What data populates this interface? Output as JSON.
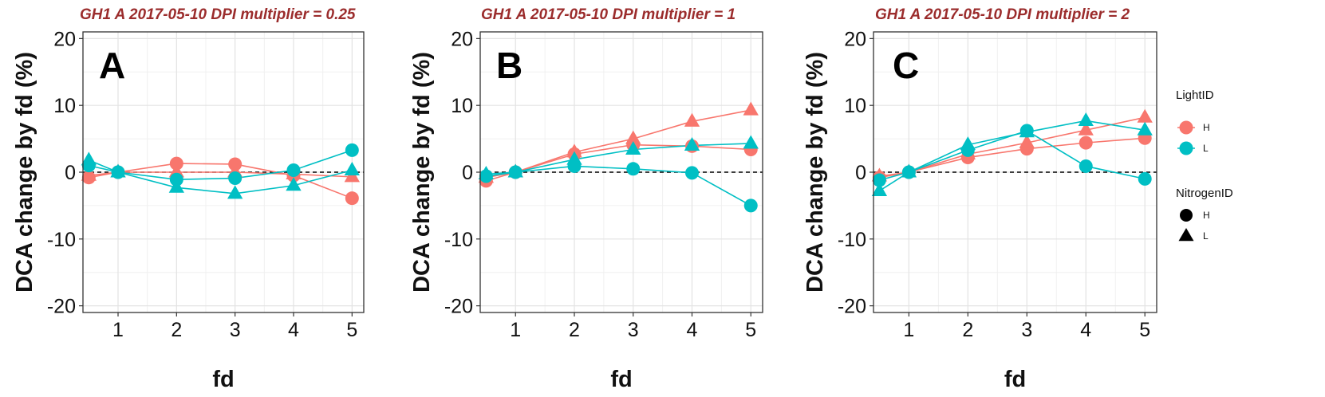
{
  "colors": {
    "H": "#f8766d",
    "L": "#00bfc4",
    "title": "#9b2c2c"
  },
  "chart_data": [
    {
      "type": "line",
      "letter": "A",
      "title": "GH1 A 2017-05-10 DPI multiplier = 0.25",
      "xlabel": "fd",
      "ylabel": "DCA change by fd (%)",
      "x_ticks": [
        1,
        2,
        3,
        4,
        5
      ],
      "y_ticks": [
        -20,
        -10,
        0,
        10,
        20
      ],
      "xlim": [
        0.4,
        5.2
      ],
      "ylim": [
        -21,
        21
      ],
      "x": [
        0.5,
        1,
        2,
        3,
        4,
        5
      ],
      "series": [
        {
          "light": "H",
          "nitrogen": "H",
          "values": [
            -0.8,
            0,
            1.3,
            1.2,
            -0.5,
            -3.9
          ]
        },
        {
          "light": "H",
          "nitrogen": "L",
          "values": [
            -0.5,
            0,
            0,
            0,
            -0.3,
            -0.7
          ]
        },
        {
          "light": "L",
          "nitrogen": "H",
          "values": [
            1.0,
            0,
            -1.1,
            -0.9,
            0.3,
            3.3
          ]
        },
        {
          "light": "L",
          "nitrogen": "L",
          "values": [
            1.8,
            0,
            -2.3,
            -3.2,
            -2.0,
            0.3
          ]
        }
      ]
    },
    {
      "type": "line",
      "letter": "B",
      "title": "GH1 A 2017-05-10 DPI multiplier = 1",
      "xlabel": "fd",
      "ylabel": "DCA change by fd (%)",
      "x_ticks": [
        1,
        2,
        3,
        4,
        5
      ],
      "y_ticks": [
        -20,
        -10,
        0,
        10,
        20
      ],
      "xlim": [
        0.4,
        5.2
      ],
      "ylim": [
        -21,
        21
      ],
      "x": [
        0.5,
        1,
        2,
        3,
        4,
        5
      ],
      "series": [
        {
          "light": "H",
          "nitrogen": "H",
          "values": [
            -1.3,
            0,
            2.7,
            4.1,
            3.9,
            3.4
          ]
        },
        {
          "light": "H",
          "nitrogen": "L",
          "values": [
            -0.8,
            0,
            3.0,
            5.0,
            7.6,
            9.3
          ]
        },
        {
          "light": "L",
          "nitrogen": "H",
          "values": [
            -0.6,
            0,
            0.9,
            0.5,
            -0.1,
            -5.0
          ]
        },
        {
          "light": "L",
          "nitrogen": "L",
          "values": [
            -0.3,
            0,
            1.9,
            3.4,
            4.0,
            4.3
          ]
        }
      ]
    },
    {
      "type": "line",
      "letter": "C",
      "title": "GH1 A 2017-05-10 DPI multiplier = 2",
      "xlabel": "fd",
      "ylabel": "DCA change by fd (%)",
      "x_ticks": [
        1,
        2,
        3,
        4,
        5
      ],
      "y_ticks": [
        -20,
        -10,
        0,
        10,
        20
      ],
      "xlim": [
        0.4,
        5.2
      ],
      "ylim": [
        -21,
        21
      ],
      "x": [
        0.5,
        1,
        2,
        3,
        4,
        5
      ],
      "series": [
        {
          "light": "H",
          "nitrogen": "H",
          "values": [
            -0.8,
            0,
            2.2,
            3.5,
            4.4,
            5.1
          ]
        },
        {
          "light": "H",
          "nitrogen": "L",
          "values": [
            -0.6,
            0,
            2.7,
            4.4,
            6.3,
            8.2
          ]
        },
        {
          "light": "L",
          "nitrogen": "H",
          "values": [
            -1.2,
            0,
            3.3,
            6.2,
            0.9,
            -1.0
          ]
        },
        {
          "light": "L",
          "nitrogen": "L",
          "values": [
            -2.8,
            0,
            4.1,
            6.0,
            7.7,
            6.3
          ]
        }
      ]
    }
  ],
  "legend": {
    "light_title": "LightID",
    "light_items": [
      {
        "label": "H",
        "key": "H"
      },
      {
        "label": "L",
        "key": "L"
      }
    ],
    "nitrogen_title": "NitrogenID",
    "nitrogen_items": [
      {
        "label": "H",
        "shape": "circle"
      },
      {
        "label": "L",
        "shape": "triangle"
      }
    ]
  }
}
